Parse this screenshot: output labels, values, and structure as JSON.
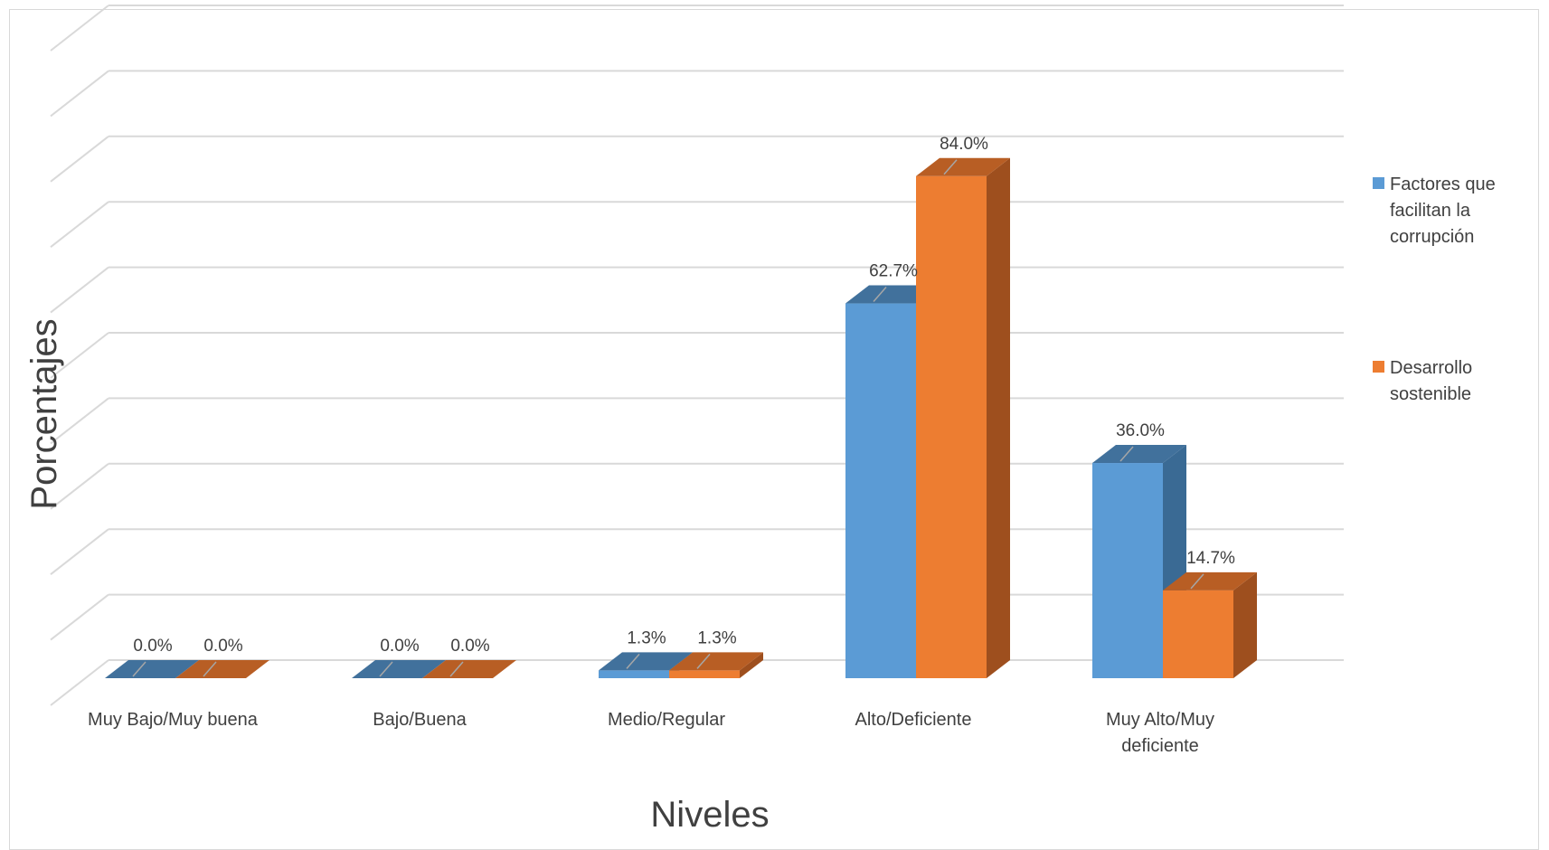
{
  "chart_data": {
    "type": "bar",
    "title": "",
    "xlabel": "Niveles",
    "ylabel": "Porcentajes",
    "categories": [
      "Muy Bajo/Muy buena",
      "Bajo/Buena",
      "Medio/Regular",
      "Alto/Deficiente",
      "Muy Alto/Muy deficiente"
    ],
    "category_lines": [
      [
        "Muy Bajo/Muy buena"
      ],
      [
        "Bajo/Buena"
      ],
      [
        "Medio/Regular"
      ],
      [
        "Alto/Deficiente"
      ],
      [
        "Muy Alto/Muy",
        "deficiente"
      ]
    ],
    "series": [
      {
        "name": "Factores que facilitan la corrupción",
        "legend_lines": [
          "Factores que",
          "facilitan la",
          "corrupción"
        ],
        "values": [
          0.0,
          0.0,
          1.3,
          62.7,
          36.0
        ],
        "labels": [
          "0.0%",
          "0.0%",
          "1.3%",
          "62.7%",
          "36.0%"
        ],
        "color": "#5B9BD5",
        "top_color": "#41719C",
        "side_color": "#3A6A94"
      },
      {
        "name": "Desarrollo sostenible",
        "legend_lines": [
          "Desarrollo",
          "sostenible"
        ],
        "values": [
          0.0,
          0.0,
          1.3,
          84.0,
          14.7
        ],
        "labels": [
          "0.0%",
          "0.0%",
          "1.3%",
          "84.0%",
          "14.7%"
        ],
        "color": "#ED7D31",
        "top_color": "#B85E24",
        "side_color": "#9E4F1E"
      }
    ],
    "ylim": [
      0,
      90
    ],
    "grid": true,
    "legend": "right",
    "value_axis_tick_labels": false
  }
}
